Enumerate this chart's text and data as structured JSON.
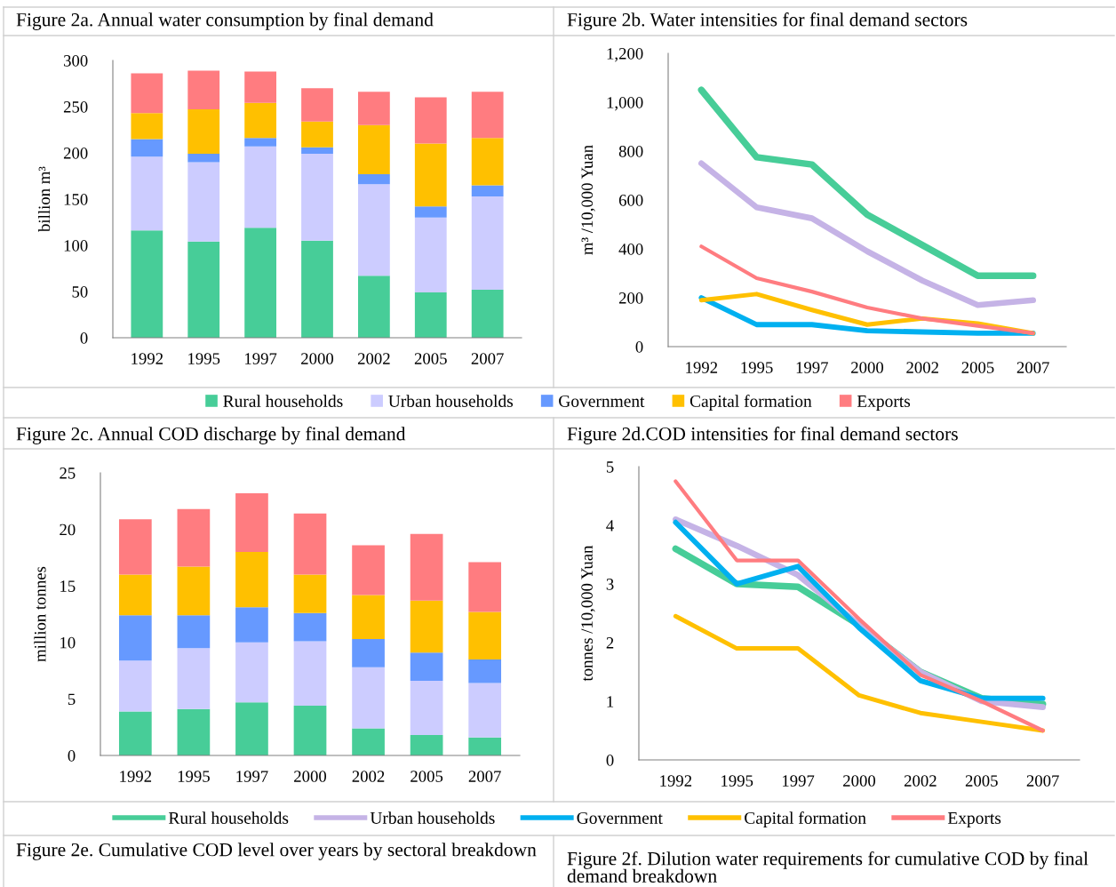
{
  "chart_data": [
    {
      "type": "bar",
      "stacked": true,
      "title": "Figure 2a. Annual water consumption by final demand",
      "ylabel": "billion m³",
      "categories": [
        "1992",
        "1995",
        "1997",
        "2000",
        "2002",
        "2005",
        "2007"
      ],
      "ylim": [
        0,
        300
      ],
      "yticks": [
        0,
        50,
        100,
        150,
        200,
        250,
        300
      ],
      "grid": false,
      "legend": "bottom",
      "series": [
        {
          "name": "Rural households",
          "color": "#47cd98",
          "values": [
            116,
            104,
            119,
            105,
            67,
            49,
            52
          ]
        },
        {
          "name": "Urban households",
          "color": "#ccccff",
          "values": [
            80,
            86,
            88,
            94,
            99,
            81,
            101
          ]
        },
        {
          "name": "Government",
          "color": "#6699ff",
          "values": [
            19,
            9,
            9,
            7,
            11,
            12,
            12
          ]
        },
        {
          "name": "Capital formation",
          "color": "#ffc000",
          "values": [
            28,
            48,
            38,
            28,
            53,
            68,
            51
          ]
        },
        {
          "name": "Exports",
          "color": "#ff7c80",
          "values": [
            43,
            42,
            34,
            36,
            36,
            50,
            50
          ]
        }
      ]
    },
    {
      "type": "line",
      "title": "Figure 2b. Water intensities for final demand sectors",
      "ylabel": "m³ /10,000 Yuan",
      "categories": [
        "1992",
        "1995",
        "1997",
        "2000",
        "2002",
        "2005",
        "2007"
      ],
      "ylim": [
        0,
        1200
      ],
      "yticks": [
        0,
        200,
        400,
        600,
        800,
        {
          "value": 1000,
          "label": "1,000"
        },
        {
          "value": 1200,
          "label": "1,200"
        }
      ],
      "grid": false,
      "marker": "none",
      "line_style": "solid",
      "series": [
        {
          "color": "#47cd98",
          "values": [
            1050,
            775,
            745,
            540,
            415,
            290,
            290
          ]
        },
        {
          "color": "#c5b3e6",
          "values": [
            750,
            570,
            525,
            390,
            270,
            170,
            190
          ]
        },
        {
          "color": "#00b0f0",
          "values": [
            200,
            90,
            90,
            65,
            60,
            55,
            55
          ]
        },
        {
          "color": "#ffc000",
          "values": [
            190,
            215,
            150,
            90,
            115,
            95,
            55
          ]
        },
        {
          "color": "#ff7c80",
          "values": [
            410,
            280,
            225,
            160,
            115,
            85,
            55
          ]
        }
      ]
    },
    {
      "type": "bar",
      "stacked": true,
      "title": "Figure 2c. Annual COD discharge by final demand",
      "ylabel": "million tonnes",
      "categories": [
        "1992",
        "1995",
        "1997",
        "2000",
        "2002",
        "2005",
        "2007"
      ],
      "ylim": [
        0,
        25
      ],
      "yticks": [
        0,
        5,
        10,
        15,
        20,
        25
      ],
      "grid": false,
      "series": [
        {
          "color": "#47cd98",
          "values": [
            3.9,
            4.1,
            4.7,
            4.4,
            2.4,
            1.8,
            1.6
          ]
        },
        {
          "color": "#ccccff",
          "values": [
            4.5,
            5.4,
            5.3,
            5.7,
            5.4,
            4.8,
            4.8
          ]
        },
        {
          "color": "#6699ff",
          "values": [
            4.0,
            2.9,
            3.1,
            2.5,
            2.5,
            2.5,
            2.1
          ]
        },
        {
          "color": "#ffc000",
          "values": [
            3.6,
            4.3,
            4.9,
            3.4,
            3.9,
            4.6,
            4.2
          ]
        },
        {
          "color": "#ff7c80",
          "values": [
            4.9,
            5.1,
            5.2,
            5.4,
            4.4,
            5.9,
            4.4
          ]
        }
      ]
    },
    {
      "type": "line",
      "title": "Figure 2d.COD intensities for final demand sectors",
      "ylabel": "tonnes /10,000 Yuan",
      "categories": [
        "1992",
        "1995",
        "1997",
        "2000",
        "2002",
        "2005",
        "2007"
      ],
      "ylim": [
        0,
        5
      ],
      "yticks": [
        0,
        1,
        2,
        3,
        4,
        5
      ],
      "grid": false,
      "marker": "none",
      "line_style": "solid",
      "legend": "bottom",
      "series": [
        {
          "name": "Rural households",
          "color": "#47cd98",
          "values": [
            3.6,
            3.0,
            2.95,
            2.3,
            1.5,
            1.05,
            0.95
          ]
        },
        {
          "name": "Urban households",
          "color": "#c5b3e6",
          "values": [
            4.1,
            3.65,
            3.15,
            2.3,
            1.5,
            1.0,
            0.9
          ]
        },
        {
          "name": "Government",
          "color": "#00b0f0",
          "values": [
            4.05,
            3.0,
            3.3,
            2.25,
            1.35,
            1.05,
            1.05
          ]
        },
        {
          "name": "Capital formation",
          "color": "#ffc000",
          "values": [
            2.45,
            1.9,
            1.9,
            1.1,
            0.8,
            0.65,
            0.5
          ]
        },
        {
          "name": "Exports",
          "color": "#ff7c80",
          "values": [
            4.75,
            3.4,
            3.4,
            2.4,
            1.45,
            1.0,
            0.5
          ]
        }
      ]
    },
    {
      "type": "other",
      "title": "Figure 2e. Cumulative COD level over years by sectoral breakdown"
    },
    {
      "type": "other",
      "title": "Figure 2f. Dilution water requirements for cumulative COD by final demand breakdown"
    }
  ]
}
